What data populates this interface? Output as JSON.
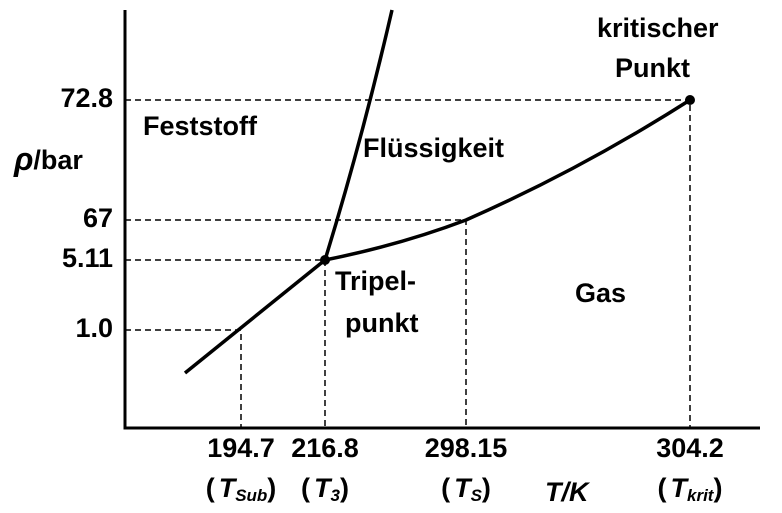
{
  "y_axis_label": {
    "symbol": "ρ",
    "unit": "/bar"
  },
  "x_axis_label": "T/K",
  "y_ticks": [
    "72.8",
    "67",
    "5.11",
    "1.0"
  ],
  "x_ticks": [
    {
      "label": "194.7",
      "open": "(",
      "symbol": "T",
      "subscript": "Sub",
      "close": ")"
    },
    {
      "label": "216.8",
      "open": "(",
      "symbol": "T",
      "subscript": "3",
      "close": ")"
    },
    {
      "label": "298.15",
      "open": "(",
      "symbol": "T",
      "subscript": "S",
      "close": ")"
    },
    {
      "label": "304.2",
      "open": "(",
      "symbol": "T",
      "subscript": "krit",
      "close": ")"
    }
  ],
  "regions": {
    "solid": "Feststoff",
    "liquid": "Flüssigkeit",
    "gas": "Gas"
  },
  "triple_point": [
    "Tripel-",
    "punkt"
  ],
  "critical_point": [
    "kritischer",
    "Punkt"
  ]
}
